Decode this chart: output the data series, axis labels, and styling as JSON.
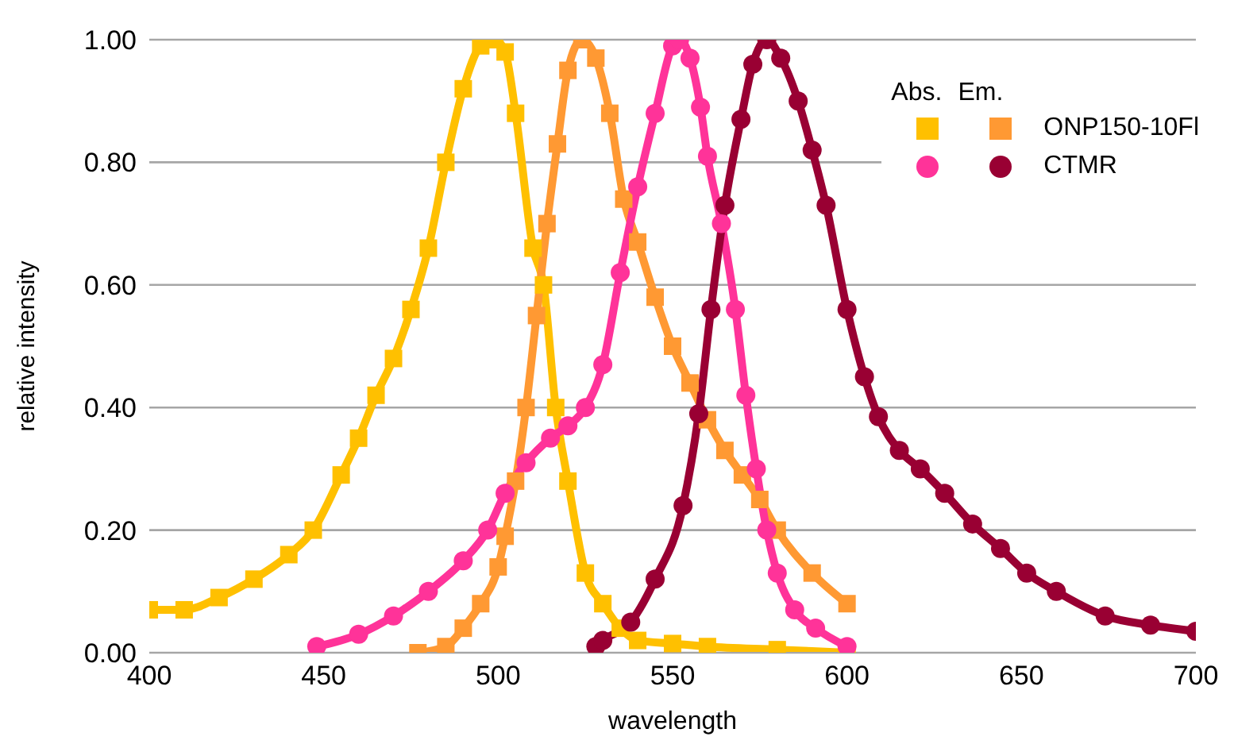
{
  "chart_data": {
    "type": "line",
    "xlabel": "wavelength",
    "ylabel": "relative intensity",
    "annotations": [
      "Abs.",
      "Em."
    ],
    "xlim": [
      400,
      700
    ],
    "xticks": [
      400,
      450,
      500,
      550,
      600,
      650,
      700
    ],
    "ylim": [
      0,
      1
    ],
    "yticks": [
      {
        "value": 0,
        "label": "0.00"
      },
      {
        "value": 0.2,
        "label": "0.20"
      },
      {
        "value": 0.4,
        "label": "0.40"
      },
      {
        "value": 0.6,
        "label": "0.60"
      },
      {
        "value": 0.8,
        "label": "0.80"
      },
      {
        "value": 1,
        "label": "1.00"
      }
    ],
    "grid": "y",
    "legend": "top right",
    "series": [
      {
        "color": "#ffc000",
        "marker": "square",
        "x": [
          400,
          410,
          420,
          430,
          440,
          447,
          455,
          460,
          465,
          470,
          475,
          480,
          485,
          490,
          495,
          499,
          502,
          505,
          510,
          513,
          516.5,
          520,
          525,
          530,
          535,
          540,
          550,
          560,
          580,
          600
        ],
        "values": [
          0.07,
          0.07,
          0.09,
          0.12,
          0.16,
          0.2,
          0.29,
          0.35,
          0.42,
          0.48,
          0.56,
          0.66,
          0.8,
          0.92,
          0.99,
          1,
          0.98,
          0.88,
          0.66,
          0.6,
          0.4,
          0.28,
          0.13,
          0.08,
          0.04,
          0.02,
          0.015,
          0.01,
          0.005,
          0
        ]
      },
      {
        "name": "ONP150-10Fl",
        "color": "#ff9933",
        "marker": "square",
        "x": [
          477,
          485,
          490,
          495,
          500,
          502,
          505,
          508,
          511,
          514,
          517,
          520,
          524,
          528,
          532,
          536,
          540,
          545,
          550,
          555,
          560,
          565,
          570,
          575,
          580,
          590,
          600
        ],
        "values": [
          0,
          0.01,
          0.04,
          0.08,
          0.14,
          0.19,
          0.28,
          0.4,
          0.55,
          0.7,
          0.83,
          0.95,
          1,
          0.97,
          0.88,
          0.74,
          0.67,
          0.58,
          0.5,
          0.44,
          0.38,
          0.33,
          0.29,
          0.25,
          0.2,
          0.13,
          0.08
        ]
      },
      {
        "color": "#ff3399",
        "marker": "circle",
        "x": [
          448,
          460,
          470,
          480,
          490,
          497,
          502,
          508,
          515,
          520,
          525,
          530,
          535,
          540,
          545,
          550,
          552,
          555,
          558,
          560,
          564,
          568,
          571,
          574,
          577,
          580,
          585,
          591,
          600
        ],
        "values": [
          0.01,
          0.03,
          0.06,
          0.1,
          0.15,
          0.2,
          0.26,
          0.31,
          0.35,
          0.37,
          0.4,
          0.47,
          0.62,
          0.76,
          0.88,
          0.99,
          1,
          0.97,
          0.89,
          0.81,
          0.7,
          0.56,
          0.42,
          0.3,
          0.2,
          0.13,
          0.07,
          0.04,
          0.01
        ]
      },
      {
        "name": "CTMR",
        "color": "#990033",
        "marker": "circle",
        "x": [
          528,
          530,
          538,
          545,
          553,
          557.5,
          561,
          565,
          569.6,
          573,
          577,
          581,
          586,
          590,
          594,
          600,
          605,
          609,
          615,
          621,
          628,
          636,
          644,
          651.5,
          660,
          674,
          687,
          700
        ],
        "values": [
          0.01,
          0.02,
          0.05,
          0.12,
          0.24,
          0.39,
          0.56,
          0.73,
          0.87,
          0.96,
          1,
          0.97,
          0.9,
          0.82,
          0.73,
          0.56,
          0.45,
          0.385,
          0.33,
          0.3,
          0.26,
          0.21,
          0.17,
          0.13,
          0.1,
          0.06,
          0.045,
          0.035
        ]
      }
    ]
  }
}
